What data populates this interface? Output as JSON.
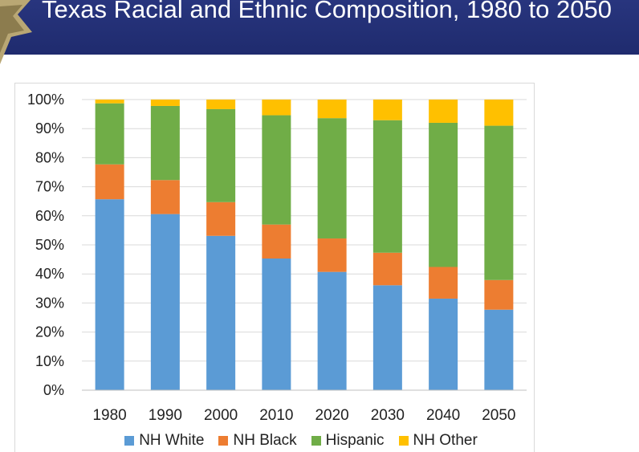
{
  "slide": {
    "title": "Texas Racial and Ethnic Composition, 1980 to 2050",
    "banner_color": "#232f73"
  },
  "chart_data": {
    "type": "bar",
    "stacked": true,
    "title": "Texas Racial and Ethnic Composition, 1980 to 2050",
    "xlabel": "",
    "ylabel": "",
    "ylim": [
      0,
      100
    ],
    "y_ticks": [
      "0%",
      "10%",
      "20%",
      "30%",
      "40%",
      "50%",
      "60%",
      "70%",
      "80%",
      "90%",
      "100%"
    ],
    "grid": true,
    "legend_position": "bottom",
    "categories": [
      "1980",
      "1990",
      "2000",
      "2010",
      "2020",
      "2030",
      "2040",
      "2050"
    ],
    "series": [
      {
        "name": "NH White",
        "color": "#5b9bd5",
        "values": [
          65.7,
          60.6,
          53.1,
          45.3,
          40.7,
          36.1,
          31.5,
          27.7
        ]
      },
      {
        "name": "NH Black",
        "color": "#ed7d31",
        "values": [
          12.0,
          11.7,
          11.6,
          11.7,
          11.5,
          11.2,
          10.9,
          10.2
        ]
      },
      {
        "name": "Hispanic",
        "color": "#70ad47",
        "values": [
          21.0,
          25.5,
          32.0,
          37.6,
          41.4,
          45.6,
          49.6,
          53.1
        ]
      },
      {
        "name": "NH Other",
        "color": "#ffc000",
        "values": [
          1.3,
          2.2,
          3.3,
          5.4,
          6.4,
          7.1,
          8.0,
          9.0
        ]
      }
    ]
  }
}
